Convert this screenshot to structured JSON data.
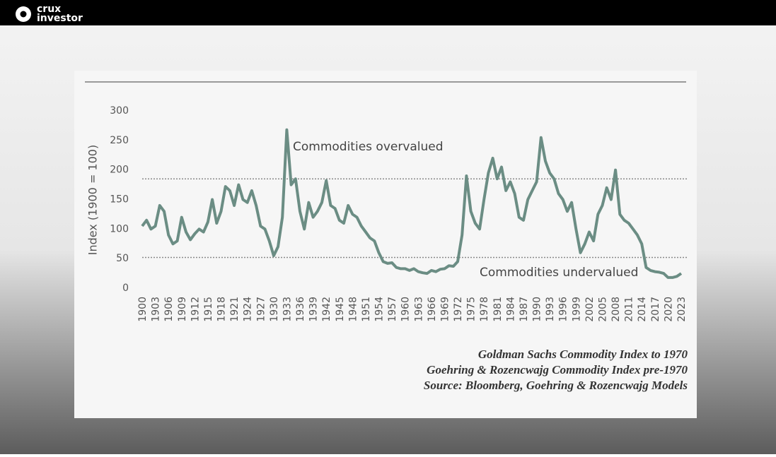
{
  "header": {
    "logo_line1": "crux",
    "logo_line2": "investor"
  },
  "chart_data": {
    "type": "line",
    "y_label": "Index (1900 = 100)",
    "color": "#6b8d84",
    "x": [
      1900,
      1901,
      1902,
      1903,
      1904,
      1905,
      1906,
      1907,
      1908,
      1909,
      1910,
      1911,
      1912,
      1913,
      1914,
      1915,
      1916,
      1917,
      1918,
      1919,
      1920,
      1921,
      1922,
      1923,
      1924,
      1925,
      1926,
      1927,
      1928,
      1929,
      1930,
      1931,
      1932,
      1933,
      1934,
      1935,
      1936,
      1937,
      1938,
      1939,
      1940,
      1941,
      1942,
      1943,
      1944,
      1945,
      1946,
      1947,
      1948,
      1949,
      1950,
      1951,
      1952,
      1953,
      1954,
      1955,
      1956,
      1957,
      1958,
      1959,
      1960,
      1961,
      1962,
      1963,
      1964,
      1965,
      1966,
      1967,
      1968,
      1969,
      1970,
      1971,
      1972,
      1973,
      1974,
      1975,
      1976,
      1977,
      1978,
      1979,
      1980,
      1981,
      1982,
      1983,
      1984,
      1985,
      1986,
      1987,
      1988,
      1989,
      1990,
      1991,
      1992,
      1993,
      1994,
      1995,
      1996,
      1997,
      1998,
      1999,
      2000,
      2001,
      2002,
      2003,
      2004,
      2005,
      2006,
      2007,
      2008,
      2009,
      2010,
      2011,
      2012,
      2013,
      2014,
      2015,
      2016,
      2017,
      2018,
      2019,
      2020,
      2021,
      2022,
      2023
    ],
    "values": [
      105,
      115,
      100,
      105,
      140,
      130,
      90,
      75,
      80,
      120,
      95,
      82,
      92,
      100,
      95,
      112,
      150,
      110,
      130,
      172,
      165,
      140,
      175,
      150,
      145,
      165,
      140,
      105,
      100,
      80,
      55,
      70,
      120,
      268,
      175,
      185,
      130,
      100,
      145,
      120,
      130,
      145,
      182,
      140,
      135,
      115,
      110,
      140,
      125,
      120,
      105,
      95,
      85,
      80,
      60,
      45,
      42,
      43,
      35,
      33,
      33,
      30,
      33,
      28,
      26,
      25,
      30,
      28,
      32,
      33,
      38,
      37,
      45,
      90,
      190,
      130,
      110,
      100,
      150,
      195,
      220,
      185,
      205,
      165,
      180,
      160,
      120,
      115,
      150,
      165,
      180,
      255,
      215,
      195,
      185,
      160,
      150,
      130,
      145,
      100,
      60,
      75,
      95,
      80,
      125,
      140,
      170,
      150,
      200,
      125,
      115,
      110,
      100,
      90,
      75,
      35,
      30,
      28,
      27,
      25,
      18,
      18,
      20,
      25
    ],
    "xlim": [
      1900,
      2023
    ],
    "xticks": [
      1900,
      1903,
      1906,
      1909,
      1912,
      1915,
      1918,
      1921,
      1924,
      1927,
      1930,
      1933,
      1936,
      1939,
      1942,
      1945,
      1948,
      1951,
      1954,
      1957,
      1960,
      1963,
      1966,
      1969,
      1972,
      1975,
      1978,
      1981,
      1984,
      1987,
      1990,
      1993,
      1996,
      1999,
      2002,
      2005,
      2008,
      2011,
      2014,
      2017,
      2020,
      2023
    ],
    "ylim": [
      0,
      300
    ],
    "yticks": [
      0,
      50,
      100,
      150,
      200,
      250,
      300
    ],
    "hlines": [
      185,
      52
    ],
    "annotations": [
      "Commodities overvalued",
      "Commodities undervalued"
    ],
    "source": [
      "Goldman Sachs Commodity Index to 1970",
      "Goehring & Rozencwajg Commodity Index pre-1970",
      "Source: Bloomberg, Goehring & Rozencwajg Models"
    ]
  }
}
